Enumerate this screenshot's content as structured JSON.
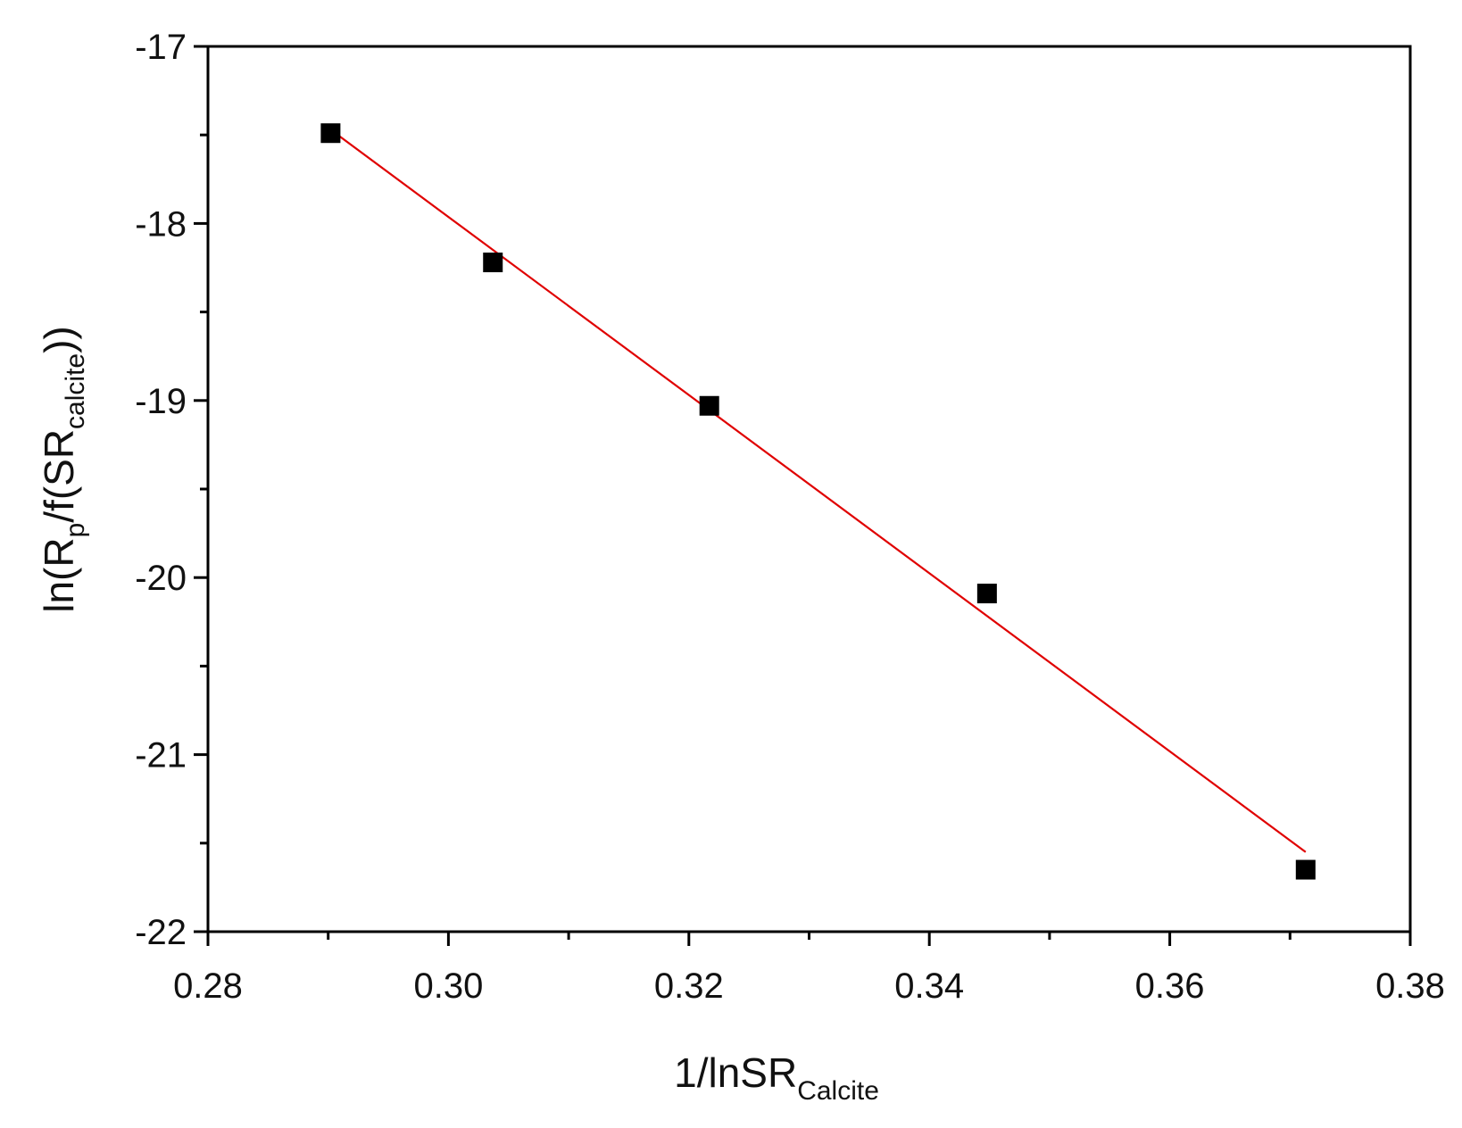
{
  "chart_data": {
    "type": "scatter",
    "xlabel": {
      "main": "1/lnSR",
      "sub": "Calcite"
    },
    "ylabel": {
      "pre": "ln(R",
      "sub1": "p",
      "mid": "/f(SR",
      "sub2": "calcite",
      "post": "))"
    },
    "xlim": [
      0.28,
      0.38
    ],
    "ylim": [
      -22,
      -17
    ],
    "x_ticks": [
      "0.28",
      "0.30",
      "0.32",
      "0.34",
      "0.36",
      "0.38"
    ],
    "y_ticks": [
      "-17",
      "-18",
      "-19",
      "-20",
      "-21",
      "-22"
    ],
    "x_tick_values": [
      0.28,
      0.3,
      0.32,
      0.34,
      0.36,
      0.38
    ],
    "y_tick_values": [
      -17,
      -18,
      -19,
      -20,
      -21,
      -22
    ],
    "x_minor_values": [
      0.29,
      0.31,
      0.33,
      0.35,
      0.37
    ],
    "y_minor_values": [
      -17.5,
      -18.5,
      -19.5,
      -20.5,
      -21.5
    ],
    "grid": false,
    "legend": "none",
    "series": [
      {
        "marker": "square",
        "color": "#000000",
        "points": [
          {
            "x": 0.2902,
            "y": -17.49
          },
          {
            "x": 0.3037,
            "y": -18.22
          },
          {
            "x": 0.3217,
            "y": -19.03
          },
          {
            "x": 0.3448,
            "y": -20.09
          },
          {
            "x": 0.3713,
            "y": -21.65
          }
        ]
      }
    ],
    "fit_line": {
      "color": "#e00000",
      "start": {
        "x": 0.2902,
        "y": -17.47
      },
      "end": {
        "x": 0.3713,
        "y": -21.55
      }
    }
  }
}
